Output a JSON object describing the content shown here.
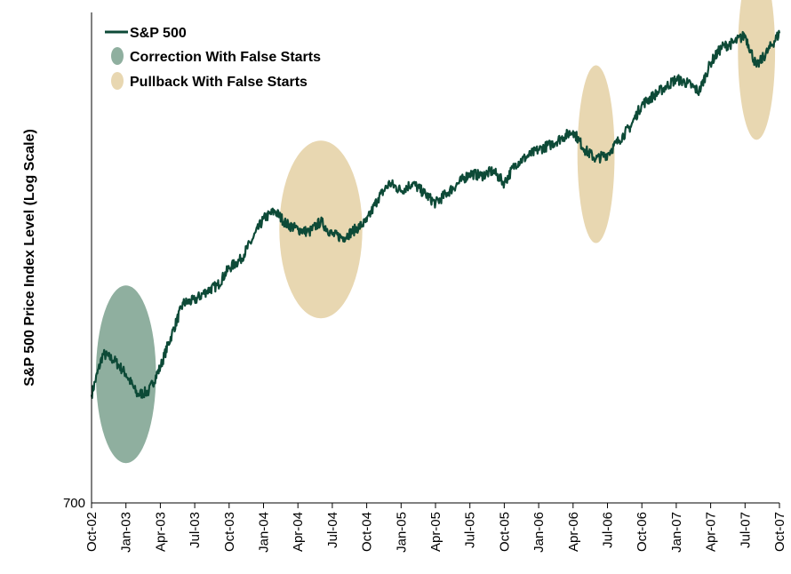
{
  "chart_data": {
    "type": "line",
    "title": "",
    "xlabel": "",
    "ylabel": "S&P 500 Price Index Level (Log Scale)",
    "y_scale": "log",
    "ylim": [
      700,
      1600
    ],
    "y_tick_labels": [
      "700"
    ],
    "x_tick_labels": [
      "Oct-02",
      "Jan-03",
      "Apr-03",
      "Jul-03",
      "Oct-03",
      "Jan-04",
      "Apr-04",
      "Jul-04",
      "Oct-04",
      "Jan-05",
      "Apr-05",
      "Jul-05",
      "Oct-05",
      "Jan-06",
      "Apr-06",
      "Jul-06",
      "Oct-06",
      "Jan-07",
      "Apr-07",
      "Jul-07",
      "Oct-07"
    ],
    "legend_placement": "top-left",
    "grid": false,
    "series": [
      {
        "name": "S&P 500",
        "color": "#0d4a37",
        "x": [
          "2002-10",
          "2002-11",
          "2002-12",
          "2003-01",
          "2003-02",
          "2003-03",
          "2003-04",
          "2003-05",
          "2003-06",
          "2003-07",
          "2003-08",
          "2003-09",
          "2003-10",
          "2003-11",
          "2003-12",
          "2004-01",
          "2004-02",
          "2004-03",
          "2004-04",
          "2004-05",
          "2004-06",
          "2004-07",
          "2004-08",
          "2004-09",
          "2004-10",
          "2004-11",
          "2004-12",
          "2005-01",
          "2005-02",
          "2005-03",
          "2005-04",
          "2005-05",
          "2005-06",
          "2005-07",
          "2005-08",
          "2005-09",
          "2005-10",
          "2005-11",
          "2005-12",
          "2006-01",
          "2006-02",
          "2006-03",
          "2006-04",
          "2006-05",
          "2006-06",
          "2006-07",
          "2006-08",
          "2006-09",
          "2006-10",
          "2006-11",
          "2006-12",
          "2007-01",
          "2007-02",
          "2007-03",
          "2007-04",
          "2007-05",
          "2007-06",
          "2007-07",
          "2007-08",
          "2007-09",
          "2007-10"
        ],
        "values": [
          840,
          900,
          890,
          870,
          840,
          845,
          880,
          930,
          980,
          985,
          1000,
          1010,
          1040,
          1055,
          1090,
          1130,
          1145,
          1120,
          1110,
          1105,
          1125,
          1100,
          1095,
          1110,
          1125,
          1170,
          1200,
          1185,
          1200,
          1180,
          1160,
          1180,
          1200,
          1220,
          1215,
          1225,
          1200,
          1240,
          1255,
          1270,
          1280,
          1295,
          1310,
          1270,
          1250,
          1260,
          1290,
          1320,
          1370,
          1390,
          1410,
          1430,
          1420,
          1400,
          1470,
          1510,
          1520,
          1540,
          1460,
          1500,
          1545
        ]
      }
    ],
    "highlights": [
      {
        "label": "Correction With False Starts",
        "color": "#8faf9f",
        "x_range": [
          "2002-11",
          "2003-03"
        ]
      },
      {
        "label": "Pullback With False Starts",
        "color": "#e8d7b1",
        "x_range": [
          "2004-03",
          "2004-09"
        ]
      },
      {
        "label": "Pullback With False Starts",
        "color": "#e8d7b1",
        "x_range": [
          "2006-05",
          "2006-07"
        ]
      },
      {
        "label": "Pullback With False Starts",
        "color": "#e8d7b1",
        "x_range": [
          "2007-07",
          "2007-09"
        ]
      }
    ]
  },
  "legend": {
    "items": [
      {
        "label": "S&P 500",
        "kind": "line",
        "color": "#0d4a37"
      },
      {
        "label": "Correction With False Starts",
        "kind": "ellipse",
        "color": "#8faf9f"
      },
      {
        "label": "Pullback With False Starts",
        "kind": "ellipse",
        "color": "#e8d7b1"
      }
    ]
  }
}
